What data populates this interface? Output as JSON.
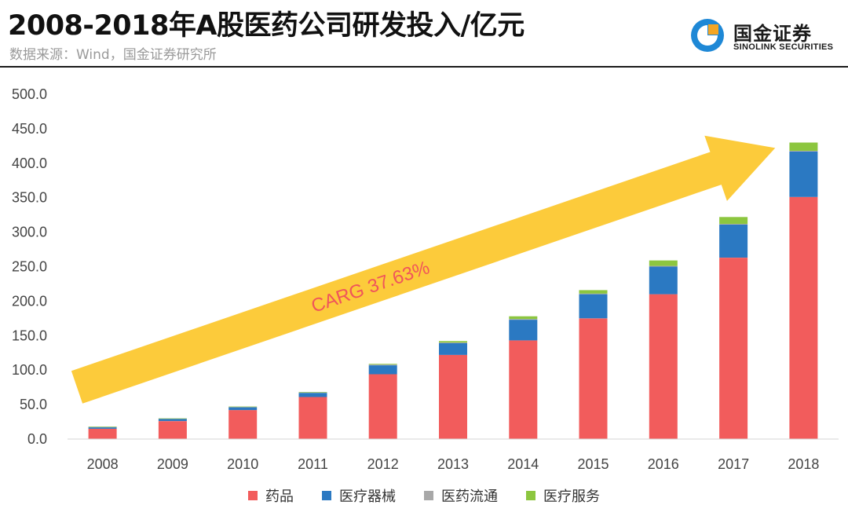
{
  "header": {
    "title": "2008-2018年A股医药公司研发投入/亿元",
    "source": "数据来源：Wind，国金证券研究所"
  },
  "logo": {
    "name_cn": "国金证券",
    "name_en": "SINOLINK SECURITIES",
    "colors": {
      "blue": "#1e88d6",
      "orange": "#f5a623"
    }
  },
  "chart_data": {
    "type": "bar",
    "stacked": true,
    "title": "2008-2018年A股医药公司研发投入/亿元",
    "categories": [
      "2008",
      "2009",
      "2010",
      "2011",
      "2012",
      "2013",
      "2014",
      "2015",
      "2016",
      "2017",
      "2018"
    ],
    "ylim": [
      0,
      500
    ],
    "yticks": [
      0,
      50,
      100,
      150,
      200,
      250,
      300,
      350,
      400,
      450,
      500
    ],
    "ytick_labels": [
      "0.0",
      "50.0",
      "100.0",
      "150.0",
      "200.0",
      "250.0",
      "300.0",
      "350.0",
      "400.0",
      "450.0",
      "500.0"
    ],
    "grid": false,
    "legend_position": "bottom",
    "series": [
      {
        "name": "药品",
        "color": "#f25c5c",
        "values": [
          15,
          26,
          42,
          61,
          94,
          122,
          143,
          175,
          210,
          263,
          351
        ]
      },
      {
        "name": "医疗器械",
        "color": "#2b79c2",
        "values": [
          2,
          3,
          4,
          6,
          13,
          17,
          30,
          35,
          40,
          48,
          66
        ]
      },
      {
        "name": "医药流通",
        "color": "#a8a8a8",
        "values": [
          0.3,
          0.3,
          0.5,
          0.5,
          1,
          1,
          1,
          1,
          1,
          1,
          1
        ]
      },
      {
        "name": "医疗服务",
        "color": "#8cc63f",
        "values": [
          0.2,
          0.2,
          0.3,
          0.5,
          1,
          2,
          4,
          5,
          8,
          10,
          12
        ]
      }
    ],
    "annotation": {
      "text": "CARG  37.63%",
      "arrow_color": "#fccb3b",
      "text_color": "#f0555a"
    }
  }
}
